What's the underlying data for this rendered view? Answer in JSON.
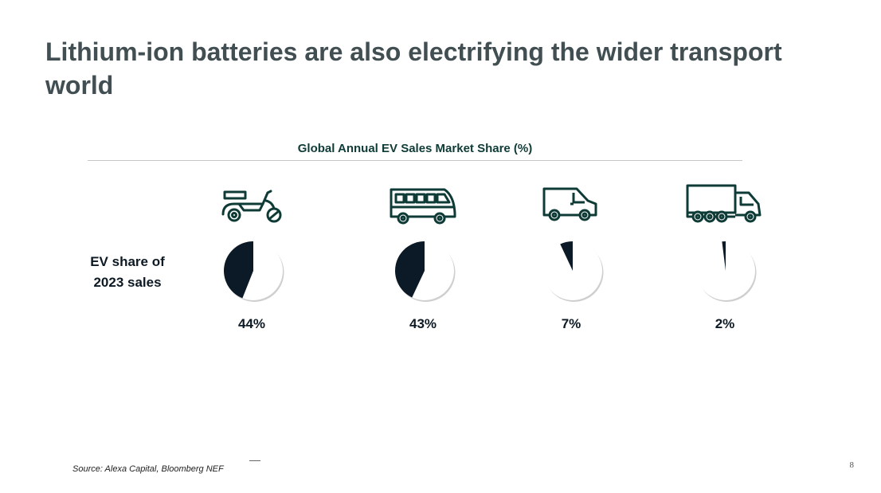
{
  "slide": {
    "title": "Lithium-ion batteries are also electrifying the wider transport world",
    "source": "Source: Alexa Capital, Bloomberg NEF",
    "page_number": "8"
  },
  "colors": {
    "title": "#414e52",
    "chart_title": "#0f3b37",
    "pie_fill": "#0b1a26",
    "pie_background": "#ffffff"
  },
  "chart_data": {
    "type": "pie",
    "title": "Global Annual EV Sales Market Share (%)",
    "row_label": "EV share of 2023 sales",
    "categories": [
      "two-wheeler",
      "bus",
      "van",
      "truck"
    ],
    "icons": [
      "scooter-icon",
      "bus-icon",
      "van-icon",
      "truck-icon"
    ],
    "values": [
      44,
      43,
      7,
      2
    ],
    "labels": [
      "44%",
      "43%",
      "7%",
      "2%"
    ]
  }
}
